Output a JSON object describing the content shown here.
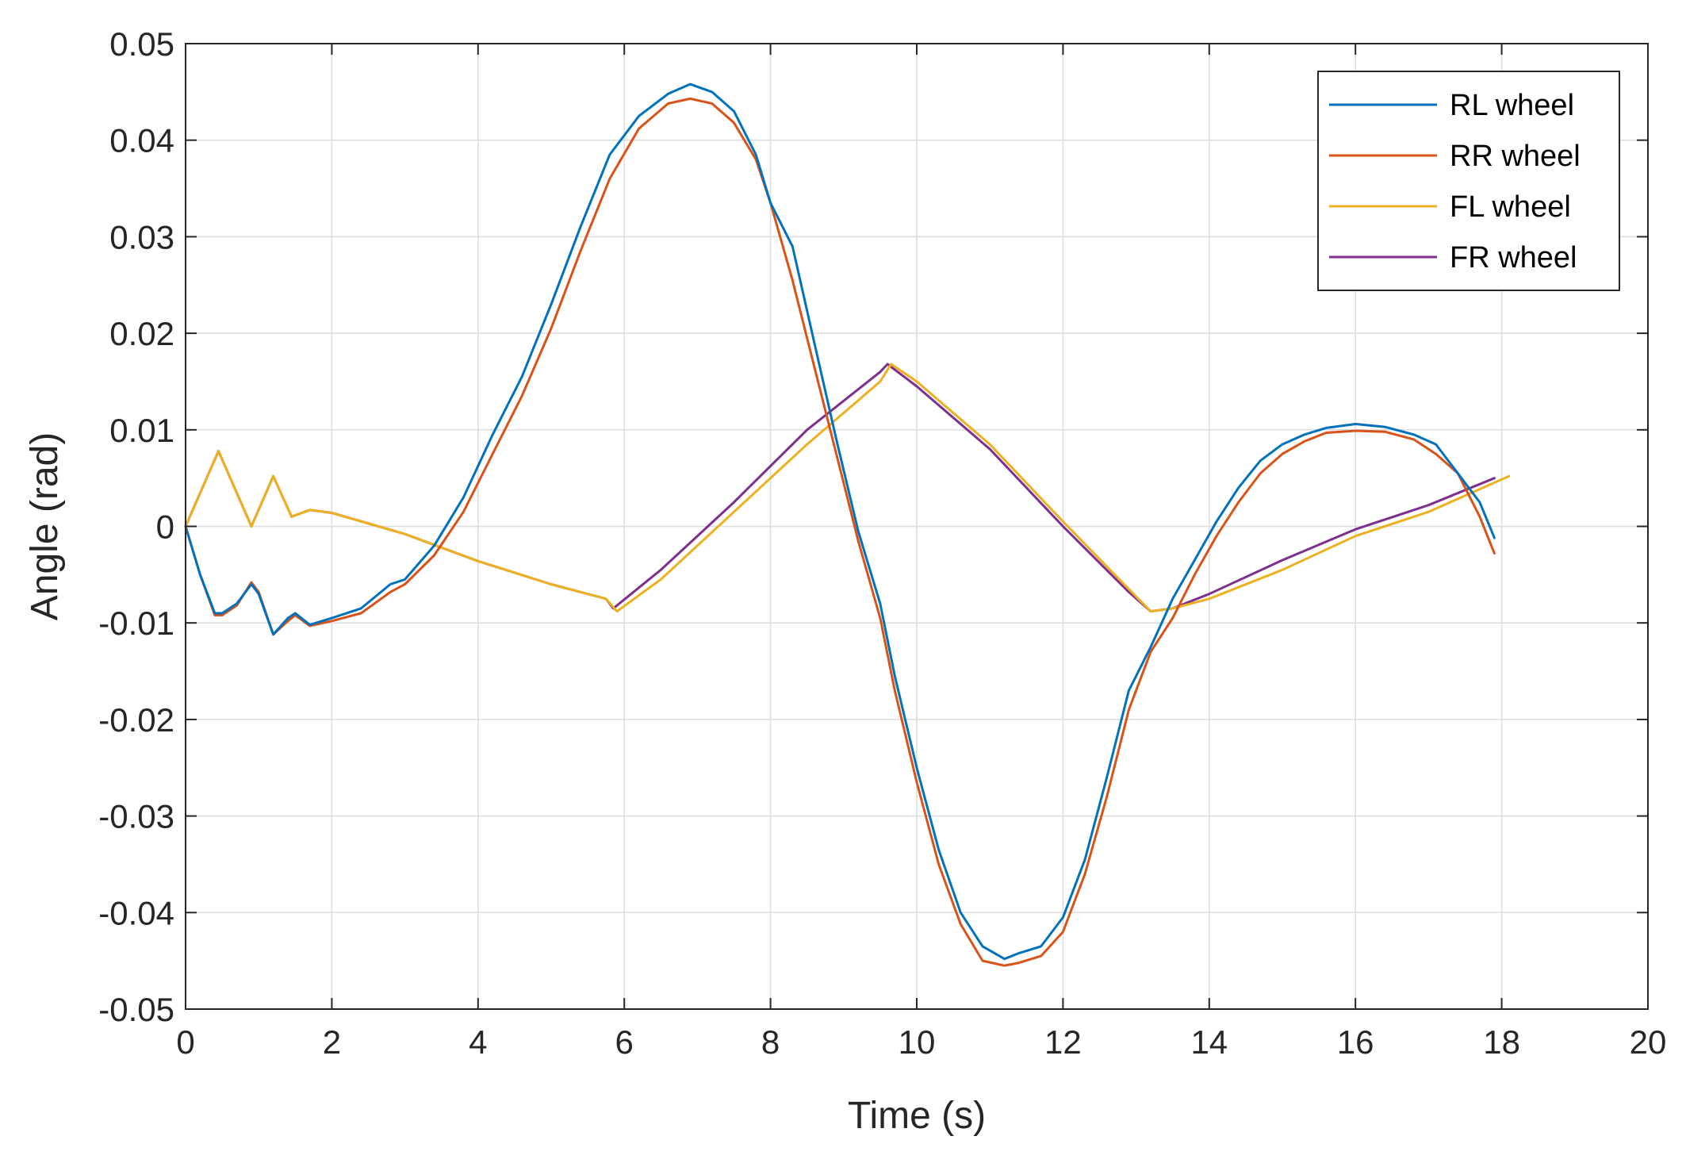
{
  "chart_data": {
    "type": "line",
    "title": "",
    "xlabel": "Time (s)",
    "ylabel": "Angle (rad)",
    "xlim": [
      0,
      20
    ],
    "ylim": [
      -0.05,
      0.05
    ],
    "xticks": [
      0,
      2,
      4,
      6,
      8,
      10,
      12,
      14,
      16,
      18,
      20
    ],
    "xtick_labels": [
      "0",
      "2",
      "4",
      "6",
      "8",
      "10",
      "12",
      "14",
      "16",
      "18",
      "20"
    ],
    "yticks": [
      -0.05,
      -0.04,
      -0.03,
      -0.02,
      -0.01,
      0,
      0.01,
      0.02,
      0.03,
      0.04,
      0.05
    ],
    "ytick_labels": [
      "-0.05",
      "-0.04",
      "-0.03",
      "-0.02",
      "-0.01",
      "0",
      "0.01",
      "0.02",
      "0.03",
      "0.04",
      "0.05"
    ],
    "grid": true,
    "legend_position": "top-right",
    "series": [
      {
        "name": "RL wheel",
        "color": "#0072BD",
        "x": [
          0,
          0.2,
          0.4,
          0.5,
          0.7,
          0.9,
          1.0,
          1.2,
          1.4,
          1.5,
          1.7,
          2.0,
          2.4,
          2.8,
          3.0,
          3.4,
          3.8,
          4.2,
          4.6,
          5.0,
          5.4,
          5.8,
          6.2,
          6.6,
          6.9,
          7.2,
          7.5,
          7.8,
          8.0,
          8.3,
          8.6,
          8.9,
          9.2,
          9.5,
          9.7,
          10.0,
          10.3,
          10.6,
          10.9,
          11.2,
          11.4,
          11.7,
          12.0,
          12.3,
          12.6,
          12.9,
          13.2,
          13.5,
          13.8,
          14.1,
          14.4,
          14.7,
          15.0,
          15.3,
          15.6,
          16.0,
          16.4,
          16.8,
          17.1,
          17.4,
          17.7,
          17.9
        ],
        "y": [
          0,
          -0.005,
          -0.009,
          -0.009,
          -0.008,
          -0.006,
          -0.007,
          -0.0112,
          -0.0095,
          -0.009,
          -0.0102,
          -0.0095,
          -0.0085,
          -0.006,
          -0.0055,
          -0.002,
          0.003,
          0.0095,
          0.0155,
          0.023,
          0.031,
          0.0385,
          0.0425,
          0.0448,
          0.0458,
          0.045,
          0.043,
          0.0385,
          0.0335,
          0.029,
          0.019,
          0.009,
          -0.0005,
          -0.008,
          -0.0155,
          -0.025,
          -0.0335,
          -0.04,
          -0.0435,
          -0.0448,
          -0.0442,
          -0.0435,
          -0.0405,
          -0.0345,
          -0.026,
          -0.017,
          -0.0125,
          -0.0075,
          -0.0035,
          0.0005,
          0.004,
          0.0068,
          0.0085,
          0.0095,
          0.0102,
          0.0106,
          0.0103,
          0.0095,
          0.0085,
          0.0055,
          0.0025,
          -0.0012
        ]
      },
      {
        "name": "RR wheel",
        "color": "#D95319",
        "x": [
          0,
          0.2,
          0.4,
          0.5,
          0.7,
          0.9,
          1.0,
          1.2,
          1.4,
          1.5,
          1.7,
          2.0,
          2.4,
          2.8,
          3.0,
          3.4,
          3.8,
          4.2,
          4.6,
          5.0,
          5.4,
          5.8,
          6.2,
          6.6,
          6.9,
          7.2,
          7.5,
          7.8,
          8.0,
          8.3,
          8.6,
          8.9,
          9.2,
          9.5,
          9.7,
          10.0,
          10.3,
          10.6,
          10.9,
          11.2,
          11.4,
          11.7,
          12.0,
          12.3,
          12.6,
          12.9,
          13.2,
          13.5,
          13.8,
          14.1,
          14.4,
          14.7,
          15.0,
          15.3,
          15.6,
          16.0,
          16.4,
          16.8,
          17.1,
          17.4,
          17.7,
          17.9
        ],
        "y": [
          0,
          -0.005,
          -0.0092,
          -0.0092,
          -0.0082,
          -0.0058,
          -0.0068,
          -0.0112,
          -0.0098,
          -0.0092,
          -0.0103,
          -0.0098,
          -0.009,
          -0.0068,
          -0.006,
          -0.003,
          0.0015,
          0.0075,
          0.0135,
          0.0205,
          0.0285,
          0.036,
          0.0412,
          0.0438,
          0.0443,
          0.0438,
          0.0418,
          0.038,
          0.0335,
          0.0255,
          0.0165,
          0.0075,
          -0.0015,
          -0.0095,
          -0.017,
          -0.0265,
          -0.035,
          -0.0412,
          -0.045,
          -0.0455,
          -0.0452,
          -0.0445,
          -0.042,
          -0.036,
          -0.028,
          -0.019,
          -0.013,
          -0.0095,
          -0.005,
          -0.001,
          0.0025,
          0.0055,
          0.0075,
          0.0088,
          0.0097,
          0.0099,
          0.0098,
          0.009,
          0.0075,
          0.0055,
          0.001,
          -0.0028
        ]
      },
      {
        "name": "FL wheel",
        "color": "#EDB120",
        "x": [
          0,
          0.45,
          0.9,
          1.2,
          1.45,
          1.7,
          2.0,
          3.0,
          4.0,
          5.0,
          5.75,
          5.9,
          6.5,
          7.5,
          8.5,
          9.5,
          9.65,
          10.0,
          11.0,
          12.0,
          12.9,
          13.2,
          13.5,
          14.0,
          15.0,
          16.0,
          17.0,
          18.1
        ],
        "y": [
          0,
          0.0078,
          0,
          0.0052,
          0.001,
          0.0017,
          0.0014,
          -0.0008,
          -0.0036,
          -0.006,
          -0.0075,
          -0.0088,
          -0.0055,
          0.0015,
          0.0085,
          0.015,
          0.0168,
          0.015,
          0.0085,
          0.0005,
          -0.0065,
          -0.0088,
          -0.0085,
          -0.0075,
          -0.0045,
          -0.001,
          0.0015,
          0.0052
        ]
      },
      {
        "name": "FR wheel",
        "color": "#7E2F8E",
        "x": [
          0,
          0.45,
          0.9,
          1.2,
          1.45,
          1.7,
          2.0,
          3.0,
          4.0,
          5.0,
          5.75,
          5.85,
          6.5,
          7.5,
          8.5,
          9.5,
          9.6,
          10.0,
          11.0,
          12.0,
          12.9,
          13.2,
          13.5,
          14.0,
          15.0,
          16.0,
          17.0,
          17.9
        ],
        "y": [
          0,
          0.0078,
          0,
          0.0052,
          0.001,
          0.0017,
          0.0014,
          -0.0008,
          -0.0036,
          -0.006,
          -0.0075,
          -0.0085,
          -0.0045,
          0.0025,
          0.01,
          0.016,
          0.0168,
          0.0145,
          0.008,
          0,
          -0.0068,
          -0.0088,
          -0.0085,
          -0.007,
          -0.0035,
          -0.0003,
          0.0022,
          0.005
        ]
      }
    ]
  }
}
